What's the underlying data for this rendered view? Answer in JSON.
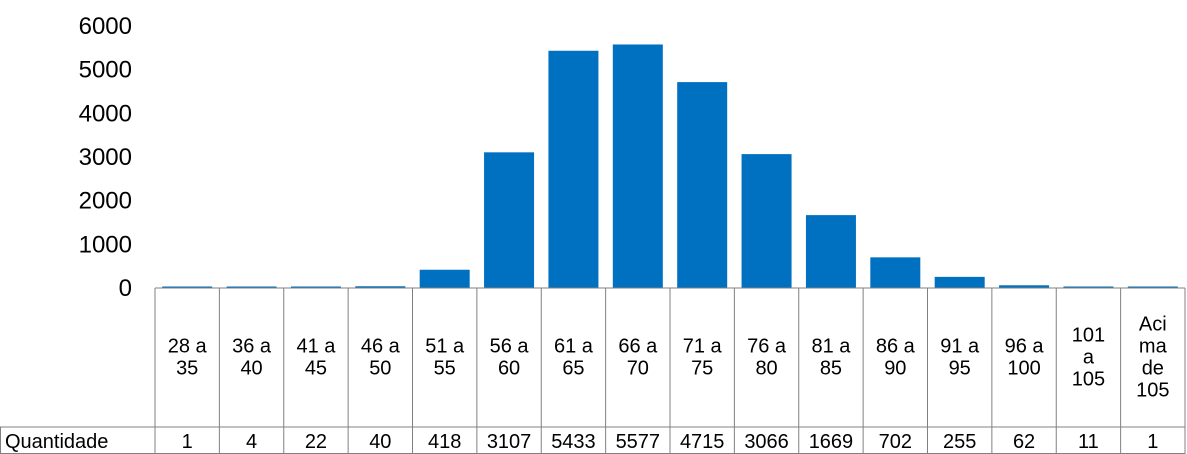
{
  "chart_data": {
    "type": "bar",
    "categories": [
      [
        "28 a",
        "35"
      ],
      [
        "36 a",
        "40"
      ],
      [
        "41 a",
        "45"
      ],
      [
        "46 a",
        "50"
      ],
      [
        "51 a",
        "55"
      ],
      [
        "56 a",
        "60"
      ],
      [
        "61 a",
        "65"
      ],
      [
        "66 a",
        "70"
      ],
      [
        "71 a",
        "75"
      ],
      [
        "76 a",
        "80"
      ],
      [
        "81 a",
        "85"
      ],
      [
        "86 a",
        "90"
      ],
      [
        "91 a",
        "95"
      ],
      [
        "96 a",
        "100"
      ],
      [
        "101",
        "a",
        "105"
      ],
      [
        "Aci",
        "ma",
        "de",
        "105"
      ]
    ],
    "series": [
      {
        "name": "Quantidade",
        "values": [
          1,
          4,
          22,
          40,
          418,
          3107,
          5433,
          5577,
          4715,
          3066,
          1669,
          702,
          255,
          62,
          11,
          1
        ]
      }
    ],
    "yticks": [
      "0",
      "1000",
      "2000",
      "3000",
      "4000",
      "5000",
      "6000"
    ],
    "ylim": [
      0,
      6000
    ],
    "title": "",
    "xlabel": "",
    "ylabel": "",
    "bar_color": "#0070C0",
    "grid": false,
    "legend": "data table below chart"
  }
}
